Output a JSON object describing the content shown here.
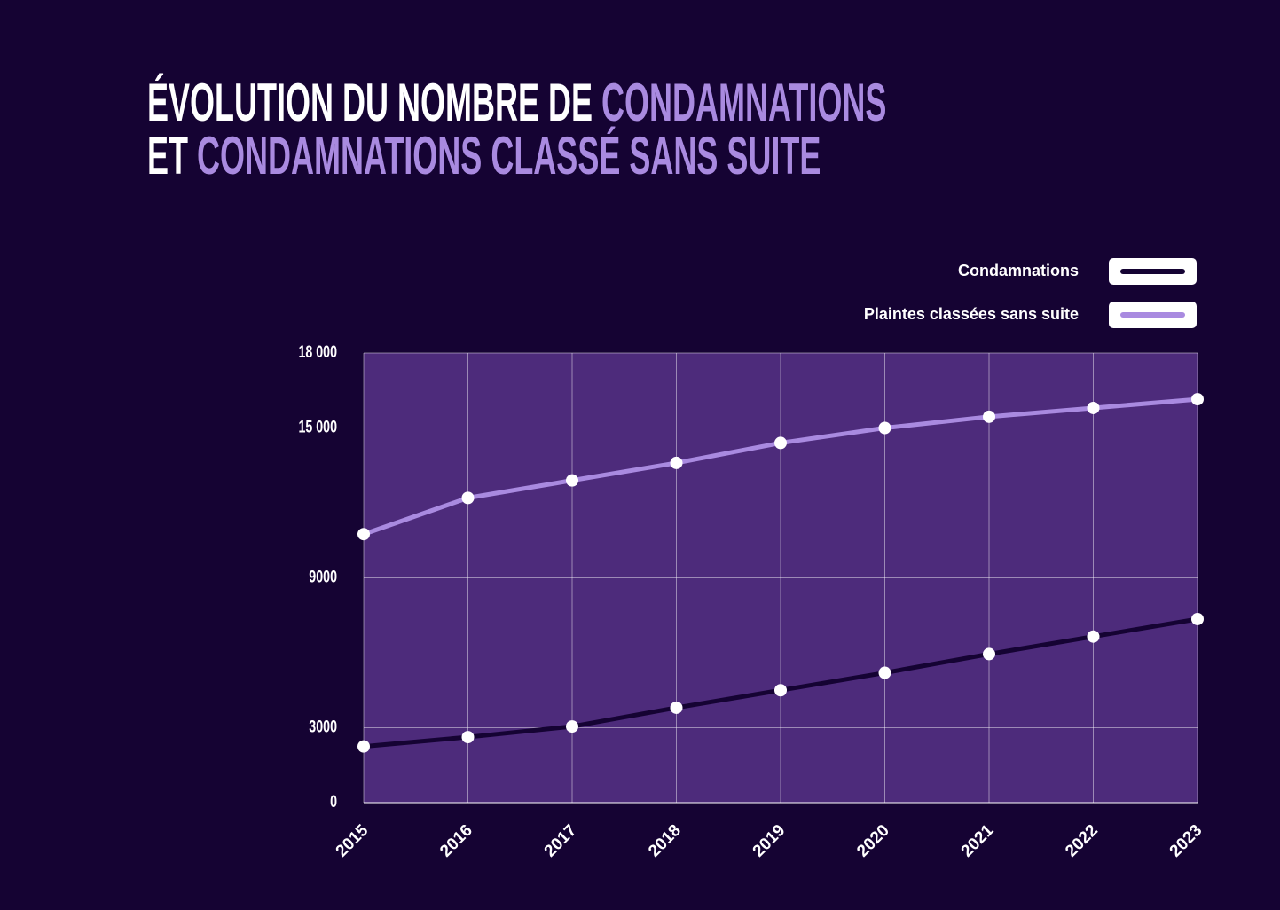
{
  "chart_data": {
    "type": "line",
    "title": {
      "line1": [
        "ÉVOLUTION DU NOMBRE DE",
        "CONDAMNATIONS"
      ],
      "line2": [
        "ET",
        "CONDAMNATIONS CLASSÉ SANS SUITE"
      ]
    },
    "categories": [
      "2015",
      "2016",
      "2017",
      "2018",
      "2019",
      "2020",
      "2021",
      "2022",
      "2023"
    ],
    "series": [
      {
        "name": "Condamnations",
        "color": "#150333",
        "values": [
          2250,
          2625,
          3050,
          3800,
          4500,
          5200,
          5950,
          6650,
          7350
        ]
      },
      {
        "name": "Plaintes classées sans suite",
        "color": "#a98ae0",
        "values": [
          10750,
          12200,
          12900,
          13600,
          14400,
          15000,
          15450,
          15800,
          16150
        ]
      }
    ],
    "ylim": [
      0,
      18000
    ],
    "yticks": [
      0,
      {
        "value": 3000,
        "label": "3000"
      },
      {
        "value": 9000,
        "label": "9000"
      },
      {
        "value": 15000,
        "label": "15 000"
      },
      {
        "value": 18000,
        "label": "18 000"
      }
    ],
    "grid": true,
    "legend": "top-right"
  }
}
